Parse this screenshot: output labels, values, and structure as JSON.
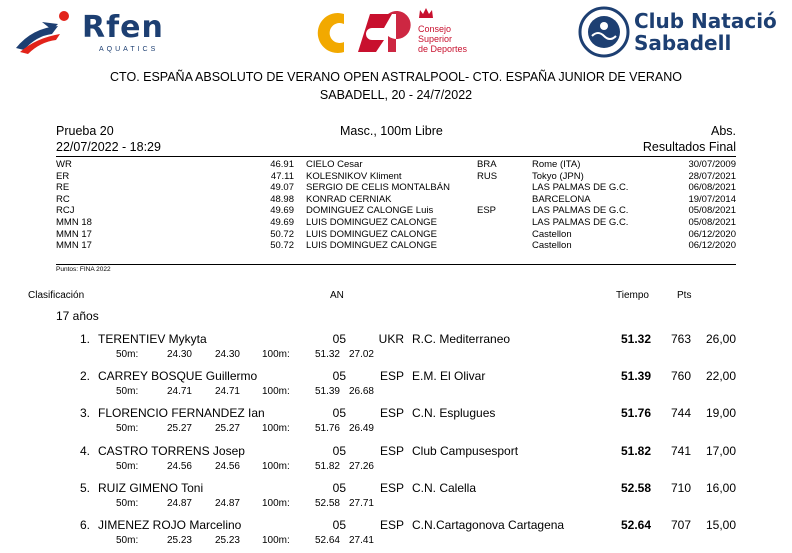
{
  "logos": {
    "rfen_name": "Rfen",
    "rfen_sub": "AQUATICS",
    "csd_line1": "Consejo",
    "csd_line2": "Superior",
    "csd_line3": "de Deportes",
    "club_line1": "Club Natació",
    "club_line2": "Sabadell",
    "brand_colors": {
      "rfen": "#1d3f72",
      "rfen_accent": "#e2231a",
      "csd_red": "#c8102e",
      "csd_yellow": "#f2a900",
      "club": "#1d3f72"
    }
  },
  "title": {
    "line1": "CTO. ESPAÑA ABSOLUTO DE VERANO OPEN ASTRALPOOL- CTO. ESPAÑA JUNIOR DE VERANO",
    "line2": "SABADELL, 20 - 24/7/2022"
  },
  "event": {
    "prueba": "Prueba 20",
    "datetime": "22/07/2022 - 18:29",
    "name": "Masc., 100m Libre",
    "category": "Abs.",
    "result_type": "Resultados Final"
  },
  "records": [
    {
      "code": "WR",
      "time": "46.91",
      "name": "CIELO Cesar",
      "nat": "BRA",
      "place": "Rome (ITA)",
      "date": "30/07/2009"
    },
    {
      "code": "ER",
      "time": "47.11",
      "name": "KOLESNIKOV Kliment",
      "nat": "RUS",
      "place": "Tokyo (JPN)",
      "date": "28/07/2021"
    },
    {
      "code": "RE",
      "time": "49.07",
      "name": "SERGIO DE CELIS MONTALBÁN",
      "nat": "",
      "place": "LAS PALMAS DE G.C.",
      "date": "06/08/2021"
    },
    {
      "code": "RC",
      "time": "48.98",
      "name": "KONRAD CERNIAK",
      "nat": "",
      "place": "BARCELONA",
      "date": "19/07/2014"
    },
    {
      "code": "RCJ",
      "time": "49.69",
      "name": "DOMINGUEZ CALONGE Luis",
      "nat": "ESP",
      "place": "LAS PALMAS DE G.C.",
      "date": "05/08/2021"
    },
    {
      "code": "MMN 18",
      "time": "49.69",
      "name": "LUIS DOMINGUEZ CALONGE",
      "nat": "",
      "place": "LAS PALMAS DE G.C.",
      "date": "05/08/2021"
    },
    {
      "code": "MMN 17",
      "time": "50.72",
      "name": "LUIS DOMINGUEZ CALONGE",
      "nat": "",
      "place": "Castellon",
      "date": "06/12/2020"
    },
    {
      "code": "MMN 17",
      "time": "50.72",
      "name": "LUIS DOMINGUEZ CALONGE",
      "nat": "",
      "place": "Castellon",
      "date": "06/12/2020"
    }
  ],
  "points_note": "Puntos: FINA 2022",
  "columns": {
    "clasificacion": "Clasificación",
    "an": "AN",
    "tiempo": "Tiempo",
    "pts": "Pts"
  },
  "age_group": "17 años",
  "split_labels": {
    "s50": "50m:",
    "s100": "100m:"
  },
  "results": [
    {
      "rank": "1.",
      "name": "TERENTIEV Mykyta",
      "year": "05",
      "nat": "UKR",
      "club": "R.C. Mediterraneo",
      "time": "51.32",
      "pts": "763",
      "score": "26,00",
      "split50": "24.30",
      "lap50": "24.30",
      "split100": "51.32",
      "lap100": "27.02"
    },
    {
      "rank": "2.",
      "name": "CARREY BOSQUE Guillermo",
      "year": "05",
      "nat": "ESP",
      "club": "E.M. El Olivar",
      "time": "51.39",
      "pts": "760",
      "score": "22,00",
      "split50": "24.71",
      "lap50": "24.71",
      "split100": "51.39",
      "lap100": "26.68"
    },
    {
      "rank": "3.",
      "name": "FLORENCIO FERNANDEZ Ian",
      "year": "05",
      "nat": "ESP",
      "club": "C.N. Esplugues",
      "time": "51.76",
      "pts": "744",
      "score": "19,00",
      "split50": "25.27",
      "lap50": "25.27",
      "split100": "51.76",
      "lap100": "26.49"
    },
    {
      "rank": "4.",
      "name": "CASTRO TORRENS Josep",
      "year": "05",
      "nat": "ESP",
      "club": "Club Campusesport",
      "time": "51.82",
      "pts": "741",
      "score": "17,00",
      "split50": "24.56",
      "lap50": "24.56",
      "split100": "51.82",
      "lap100": "27.26"
    },
    {
      "rank": "5.",
      "name": "RUIZ GIMENO Toni",
      "year": "05",
      "nat": "ESP",
      "club": "C.N. Calella",
      "time": "52.58",
      "pts": "710",
      "score": "16,00",
      "split50": "24.87",
      "lap50": "24.87",
      "split100": "52.58",
      "lap100": "27.71"
    },
    {
      "rank": "6.",
      "name": "JIMENEZ ROJO Marcelino",
      "year": "05",
      "nat": "ESP",
      "club": "C.N.Cartagonova Cartagena",
      "time": "52.64",
      "pts": "707",
      "score": "15,00",
      "split50": "25.23",
      "lap50": "25.23",
      "split100": "52.64",
      "lap100": "27.41"
    }
  ]
}
